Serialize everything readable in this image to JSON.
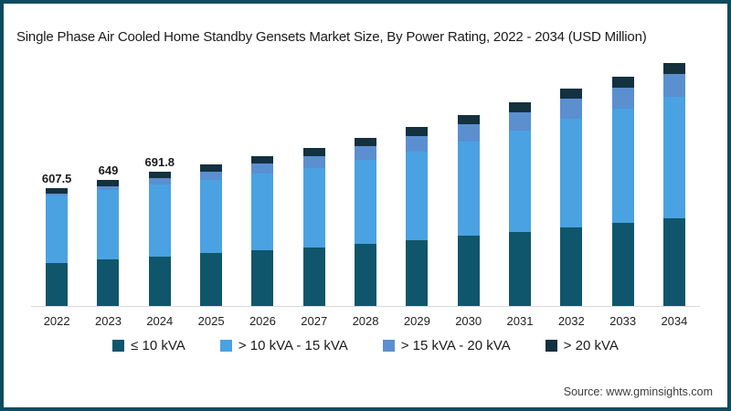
{
  "chart_data": {
    "type": "bar",
    "stacked": true,
    "title": "Single Phase Air Cooled Home Standby Gensets Market Size, By Power Rating, 2022 - 2034 (USD Million)",
    "categories": [
      "2022",
      "2023",
      "2024",
      "2025",
      "2026",
      "2027",
      "2028",
      "2029",
      "2030",
      "2031",
      "2032",
      "2033",
      "2034"
    ],
    "series": [
      {
        "name": "≤ 10 kVA",
        "color": "#0f566c",
        "values": [
          222.3,
          238.8,
          256.0,
          271.6,
          286.4,
          301.6,
          321.2,
          341.3,
          361.5,
          384.0,
          407.3,
          427.8,
          450.5
        ]
      },
      {
        "name": "> 10 kVA - 15 kVA",
        "color": "#4aa2e2",
        "values": [
          348.2,
          360.2,
          371.5,
          378.8,
          394.5,
          411.5,
          431.3,
          453.3,
          485.5,
          519.7,
          557.6,
          590.1,
          628.8
        ]
      },
      {
        "name": "> 15 kVA - 20 kVA",
        "color": "#5b8fd0",
        "values": [
          9.1,
          19.5,
          31.1,
          43.8,
          52.5,
          61.1,
          71.2,
          82.3,
          88.7,
          95.7,
          102.1,
          109.0,
          115.5
        ]
      },
      {
        "name": "> 20 kVA",
        "color": "#13313f",
        "values": [
          27.9,
          30.5,
          33.2,
          35.8,
          38.6,
          40.8,
          44.3,
          48.1,
          49.3,
          52.6,
          55.0,
          58.1,
          60.2
        ]
      }
    ],
    "totals": [
      607.5,
      649.0,
      691.8,
      730.0,
      772.0,
      815.0,
      868.0,
      925.0,
      985.0,
      1052.0,
      1122.0,
      1185.0,
      1255.0
    ],
    "bar_labels": [
      "607.5",
      "649",
      "691.8",
      "",
      "",
      "",
      "",
      "",
      "",
      "",
      "",
      "",
      ""
    ],
    "xlabel": "",
    "ylabel": "",
    "ylim": [
      0,
      1300
    ],
    "grid": false,
    "legend_position": "bottom"
  },
  "footer": {
    "source": "Source: www.gminsights.com"
  },
  "frame": {
    "border_color": "#0d4b61",
    "background": "#ffffff"
  }
}
